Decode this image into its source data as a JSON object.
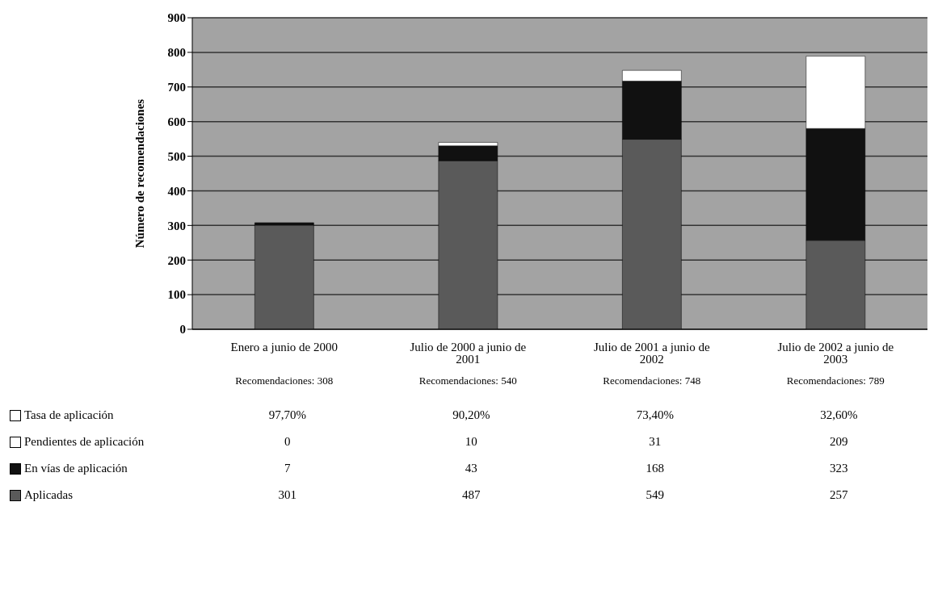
{
  "chart_data": {
    "type": "bar",
    "stacked": true,
    "ylabel": "Número de recomendaciones",
    "categories": [
      "Enero a junio de 2000",
      "Julio de 2000 a junio de 2001",
      "Julio de 2001 a junio de 2002",
      "Julio de 2002 a junio de 2003"
    ],
    "series": [
      {
        "name": "Aplicadas",
        "color": "#5a5a5a",
        "values": [
          301,
          487,
          549,
          257
        ]
      },
      {
        "name": "En vías de aplicación",
        "color": "#111111",
        "values": [
          7,
          43,
          168,
          323
        ]
      },
      {
        "name": "Pendientes de aplicación",
        "color": "#ffffff",
        "values": [
          0,
          10,
          31,
          209
        ]
      }
    ],
    "annotations": [
      "Recomendaciones: 308",
      "Recomendaciones: 540",
      "Recomendaciones: 748",
      "Recomendaciones: 789",
      "Tasa de aplicación",
      "97,70%",
      "90,20%",
      "73,40%",
      "32,60%"
    ],
    "ylim": [
      0,
      900
    ],
    "yticks": [
      0,
      100,
      200,
      300,
      400,
      500,
      600,
      700,
      800,
      900
    ],
    "grid": "y",
    "legend": "bottom",
    "data_labels": true
  }
}
